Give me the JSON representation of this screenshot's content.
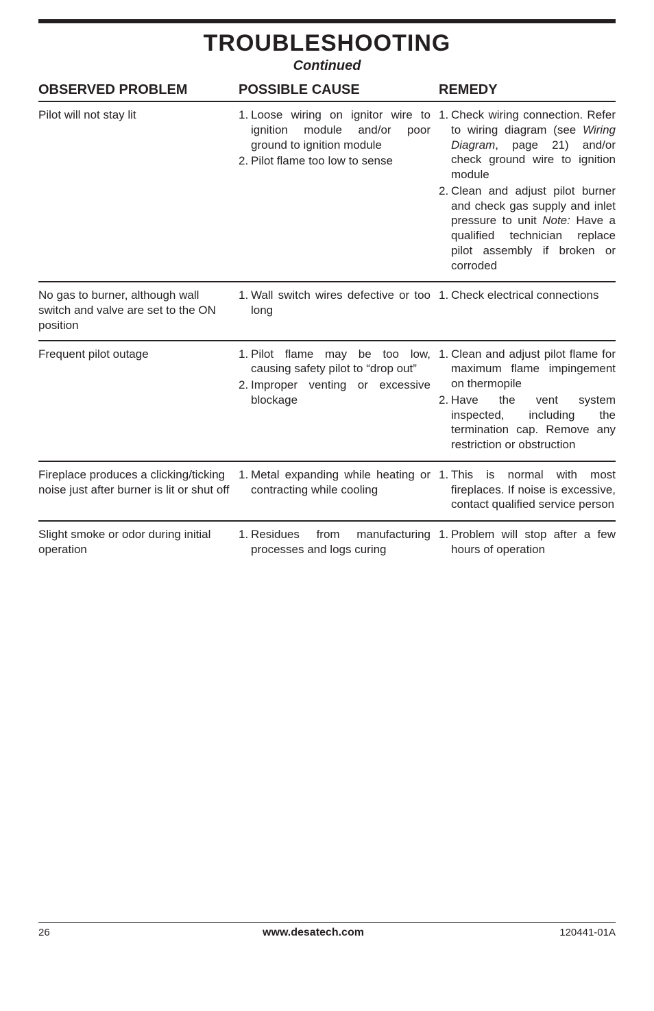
{
  "title": "TROUBLESHOOTING",
  "subtitle": "Continued",
  "headers": {
    "problem": "OBSERVED PROBLEM",
    "cause": "POSSIBLE CAUSE",
    "remedy": "REMEDY"
  },
  "rows": [
    {
      "problem": "Pilot will not stay lit",
      "causes": [
        {
          "n": "1.",
          "t": "Loose wiring on ignitor wire to ignition module and/or poor ground to ignition module"
        },
        {
          "n": "2.",
          "t": "Pilot flame too low to sense"
        }
      ],
      "remedies": [
        {
          "n": "1.",
          "t": "Check wiring connection. Refer to wiring diagram (see <span class=\"italic\">Wiring Diagram</span>, page 21) and/or check ground wire to ignition module"
        },
        {
          "n": "2.",
          "t": "Clean and adjust pilot burner and check gas supply and inlet pressure to unit <span class=\"italic\">Note:</span> Have a qualified technician replace pilot assembly if broken or corroded"
        }
      ]
    },
    {
      "problem": "No gas to burner, although wall switch and valve are set to the ON position",
      "causes": [
        {
          "n": "1.",
          "t": "Wall switch wires defective or too long"
        }
      ],
      "remedies": [
        {
          "n": "1.",
          "t": "Check electrical connections"
        }
      ]
    },
    {
      "problem": "Frequent pilot outage",
      "causes": [
        {
          "n": "1.",
          "t": "Pilot flame may be too low, causing safety pilot to “drop out”"
        },
        {
          "n": "2.",
          "t": "Improper venting or excessive blockage"
        }
      ],
      "remedies": [
        {
          "n": "1.",
          "t": "Clean and adjust pilot flame for maximum flame impingement on thermopile"
        },
        {
          "n": "2.",
          "t": "Have the vent system inspected, including the termination cap. Remove any restriction or obstruction"
        }
      ]
    },
    {
      "problem": "Fireplace produces a clicking/ticking noise just after burner is lit or shut off",
      "causes": [
        {
          "n": "1.",
          "t": "Metal expanding while heating or contracting while cooling"
        }
      ],
      "remedies": [
        {
          "n": "1.",
          "t": "This is normal with most fireplaces. If noise is excessive, contact qualified service person"
        }
      ]
    },
    {
      "problem": "Slight smoke or odor during initial operation",
      "causes": [
        {
          "n": "1.",
          "t": "Residues from manufacturing processes and logs curing"
        }
      ],
      "remedies": [
        {
          "n": "1.",
          "t": "Problem will stop after a few hours of operation"
        }
      ]
    }
  ],
  "footer": {
    "page": "26",
    "url": "www.desatech.com",
    "doc": "120441-01A"
  },
  "colors": {
    "text": "#231f20",
    "rule": "#231f20",
    "background": "#ffffff"
  }
}
